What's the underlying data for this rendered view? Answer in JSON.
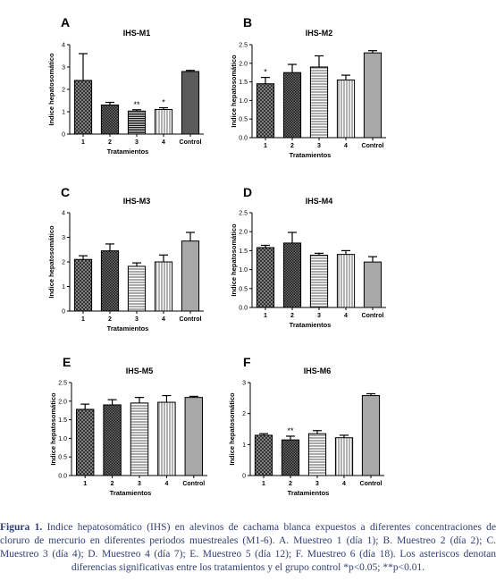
{
  "figure": {
    "shared": {
      "ylabel": "Indice hepatosomático",
      "xlabel": "Tratamientos",
      "categories": [
        "1",
        "2",
        "3",
        "4",
        "Control"
      ]
    },
    "caption": {
      "lead": "Figura 1.",
      "text": "Indice hepatosomático (IHS) en alevinos de cachama blanca expuestos a diferentes concentraciones de cloruro de mercurio en diferentes periodos muestreales (M1-6). A. Muestreo 1 (día 1); B. Muestreo 2 (día 2); C. Muestreo 3 (día 4); D. Muestreo 4 (día 7); E. Muestreo 5 (día 12); F. Muestreo 6 (día 18). Los asteriscos denotan diferencias significativas entre los tratamientos y el grupo control *p<0.05; **p<0.01."
    },
    "colors": {
      "caption_text": "#2f3f73",
      "bar_edge": "#000000",
      "control_bar": "#5a5a5a"
    }
  },
  "chart_data": [
    {
      "type": "bar",
      "panel_letter": "A",
      "title": "IHS-M1",
      "xlabel": "Tratamientos",
      "ylabel": "Indice hepatosomático",
      "categories": [
        "1",
        "2",
        "3",
        "4",
        "Control"
      ],
      "values": [
        2.4,
        1.3,
        1.03,
        1.1,
        2.8
      ],
      "errors": [
        1.2,
        0.12,
        0.06,
        0.08,
        0.05
      ],
      "annotations": [
        "",
        "",
        "**",
        "*",
        ""
      ],
      "ylim": [
        0,
        4
      ],
      "yticks": [
        "0",
        "1",
        "2",
        "3",
        "4"
      ],
      "bar_patterns": [
        "crosshatch",
        "dense-dots",
        "dense-horizontal",
        "vertical",
        "solid-gray"
      ],
      "grid": false,
      "legend": "none"
    },
    {
      "type": "bar",
      "panel_letter": "B",
      "title": "IHS-M2",
      "xlabel": "Tratamientos",
      "ylabel": "Indice hepatosomático",
      "categories": [
        "1",
        "2",
        "3",
        "4",
        "Control"
      ],
      "values": [
        1.45,
        1.75,
        1.9,
        1.55,
        2.28
      ],
      "errors": [
        0.17,
        0.22,
        0.3,
        0.13,
        0.06
      ],
      "annotations": [
        "*",
        "",
        "",
        "",
        ""
      ],
      "ylim": [
        0,
        2.5
      ],
      "yticks": [
        "0.0",
        "0.5",
        "1.0",
        "1.5",
        "2.0",
        "2.5"
      ],
      "bar_patterns": [
        "crosshatch",
        "dense-dots",
        "horizontal",
        "vertical",
        "light-gray"
      ],
      "grid": false,
      "legend": "none"
    },
    {
      "type": "bar",
      "panel_letter": "C",
      "title": "IHS-M3",
      "xlabel": "Tratamientos",
      "ylabel": "Indice hepatosomático",
      "categories": [
        "1",
        "2",
        "3",
        "4",
        "Control"
      ],
      "values": [
        2.1,
        2.45,
        1.82,
        2.0,
        2.85
      ],
      "errors": [
        0.15,
        0.28,
        0.14,
        0.28,
        0.35
      ],
      "annotations": [
        "",
        "",
        "",
        "",
        ""
      ],
      "ylim": [
        0,
        4
      ],
      "yticks": [
        "0",
        "1",
        "2",
        "3",
        "4"
      ],
      "bar_patterns": [
        "crosshatch",
        "dense-dots",
        "horizontal",
        "vertical",
        "light-gray"
      ],
      "grid": false,
      "legend": "none"
    },
    {
      "type": "bar",
      "panel_letter": "D",
      "title": "IHS-M4",
      "xlabel": "Tratamientos",
      "ylabel": "Indice hepatosomático",
      "categories": [
        "1",
        "2",
        "3",
        "4",
        "Control"
      ],
      "values": [
        1.58,
        1.7,
        1.38,
        1.4,
        1.2
      ],
      "errors": [
        0.06,
        0.28,
        0.05,
        0.1,
        0.14
      ],
      "annotations": [
        "",
        "",
        "",
        "",
        ""
      ],
      "ylim": [
        0,
        2.5
      ],
      "yticks": [
        "0.0",
        "0.5",
        "1.0",
        "1.5",
        "2.0",
        "2.5"
      ],
      "bar_patterns": [
        "crosshatch",
        "dense-dots",
        "horizontal",
        "vertical",
        "light-gray"
      ],
      "grid": false,
      "legend": "none"
    },
    {
      "type": "bar",
      "panel_letter": "E",
      "title": "IHS-M5",
      "xlabel": "Tratamientos",
      "ylabel": "Indice hepatosomático",
      "categories": [
        "1",
        "2",
        "3",
        "4",
        "Control"
      ],
      "values": [
        1.78,
        1.9,
        1.95,
        1.97,
        2.1
      ],
      "errors": [
        0.14,
        0.14,
        0.15,
        0.18,
        0.03
      ],
      "annotations": [
        "",
        "",
        "",
        "",
        ""
      ],
      "ylim": [
        0,
        2.5
      ],
      "yticks": [
        "0.0",
        "0.5",
        "1.0",
        "1.5",
        "2.0",
        "2.5"
      ],
      "bar_patterns": [
        "crosshatch",
        "dense-dots",
        "horizontal",
        "vertical",
        "light-gray"
      ],
      "grid": false,
      "legend": "none"
    },
    {
      "type": "bar",
      "panel_letter": "F",
      "title": "IHS-M6",
      "xlabel": "Tratamientos",
      "ylabel": "Indice hepatosomático",
      "categories": [
        "1",
        "2",
        "3",
        "4",
        "Control"
      ],
      "values": [
        1.3,
        1.15,
        1.35,
        1.22,
        2.58
      ],
      "errors": [
        0.05,
        0.12,
        0.1,
        0.08,
        0.06
      ],
      "annotations": [
        "",
        "**",
        "",
        "",
        ""
      ],
      "ylim": [
        0,
        3
      ],
      "yticks": [
        "0",
        "1",
        "2",
        "3"
      ],
      "bar_patterns": [
        "crosshatch",
        "dense-dots",
        "horizontal",
        "vertical",
        "light-gray"
      ],
      "grid": false,
      "legend": "none"
    }
  ]
}
